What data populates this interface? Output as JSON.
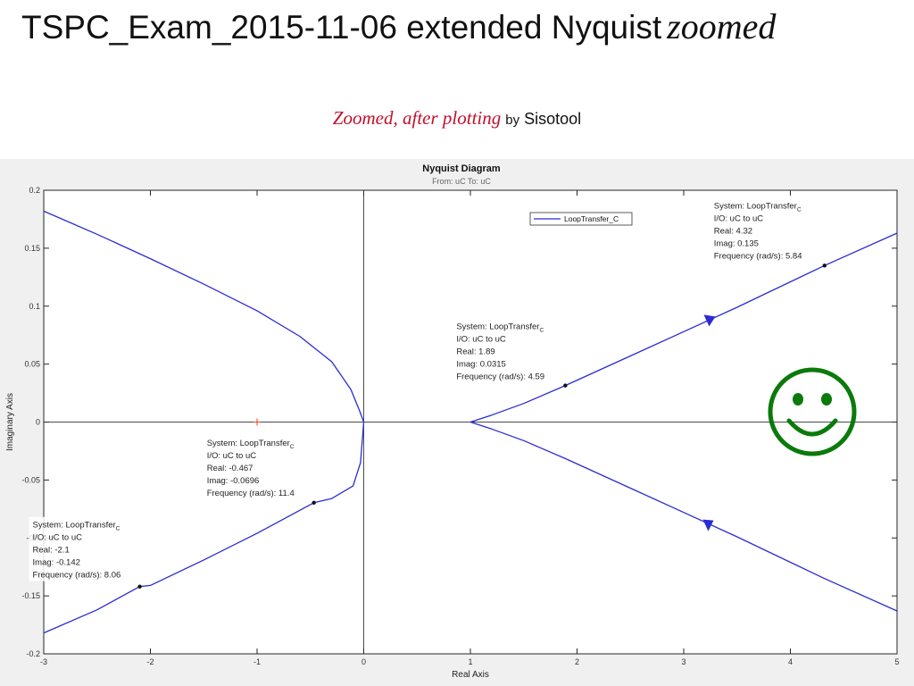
{
  "slide": {
    "title_main": "TSPC_Exam_2015-11-06 extended Nyquist",
    "title_italic": "zoomed",
    "subtitle_italic": "Zoomed, after plotting",
    "subtitle_by": "by",
    "subtitle_tool": "Sisotool"
  },
  "chart_data": {
    "type": "line",
    "title": "Nyquist Diagram",
    "subtitle": "From: uC  To: uC",
    "xlabel": "Real Axis",
    "ylabel": "Imaginary Axis",
    "xlim": [
      -3,
      5
    ],
    "ylim": [
      -0.2,
      0.2
    ],
    "xticks": [
      -3,
      -2,
      -1,
      0,
      1,
      2,
      3,
      4,
      5
    ],
    "yticks": [
      -0.2,
      -0.15,
      -0.1,
      -0.05,
      0,
      0.05,
      0.1,
      0.15,
      0.2
    ],
    "xtick_labels": [
      "-3",
      "-2",
      "-1",
      "0",
      "1",
      "2",
      "3",
      "4",
      "5"
    ],
    "ytick_labels": [
      "-0.2",
      "-0.15",
      "-0.1",
      "-0.05",
      "0",
      "0.05",
      "0.1",
      "0.15",
      "0.2"
    ],
    "legend": {
      "label": "LoopTransfer_C",
      "placement": "top-right"
    },
    "colors": {
      "curve": "#2b2bd6",
      "critical_point": "#e8402a",
      "smiley": "#0a7a0a"
    },
    "critical_point": {
      "x": -1,
      "y": 0
    },
    "series": [
      {
        "name": "LoopTransfer_C",
        "branches": [
          [
            [
              -3,
              0.182
            ],
            [
              -2.5,
              0.162
            ],
            [
              -2,
              0.141
            ],
            [
              -1.5,
              0.119
            ],
            [
              -1,
              0.096
            ],
            [
              -0.6,
              0.074
            ],
            [
              -0.3,
              0.052
            ],
            [
              -0.12,
              0.028
            ],
            [
              -0.04,
              0.01
            ],
            [
              0,
              0
            ]
          ],
          [
            [
              0,
              0
            ],
            [
              -0.03,
              -0.035
            ],
            [
              -0.1,
              -0.055
            ],
            [
              -0.3,
              -0.066
            ],
            [
              -0.467,
              -0.0696
            ],
            [
              -1,
              -0.096
            ],
            [
              -1.5,
              -0.119
            ],
            [
              -2,
              -0.141
            ],
            [
              -2.1,
              -0.142
            ],
            [
              -2.5,
              -0.162
            ],
            [
              -3,
              -0.182
            ]
          ],
          [
            [
              1.0,
              0
            ],
            [
              1.2,
              0.006
            ],
            [
              1.5,
              0.016
            ],
            [
              1.89,
              0.0315
            ],
            [
              2.5,
              0.057
            ],
            [
              3,
              0.078
            ],
            [
              3.5,
              0.099
            ],
            [
              4.32,
              0.135
            ],
            [
              5,
              0.163
            ]
          ],
          [
            [
              1.0,
              0
            ],
            [
              1.2,
              -0.006
            ],
            [
              1.5,
              -0.016
            ],
            [
              1.89,
              -0.0315
            ],
            [
              2.5,
              -0.057
            ],
            [
              3,
              -0.078
            ],
            [
              3.5,
              -0.099
            ],
            [
              4.32,
              -0.135
            ],
            [
              5,
              -0.163
            ]
          ]
        ]
      }
    ],
    "arrows": [
      {
        "x": 3.23,
        "y": 0.088,
        "dir": "up-right"
      },
      {
        "x": 3.23,
        "y": -0.088,
        "dir": "down-left"
      }
    ],
    "datatips": [
      {
        "x": 4.32,
        "y": 0.135,
        "anchor": "top-right",
        "system": "System:  LoopTransfer",
        "sub": "C",
        "io": "I/O:  uC  to  uC",
        "real": "Real:  4.32",
        "imag": "Imag:  0.135",
        "freq": "Frequency  (rad/s):  5.84"
      },
      {
        "x": 1.89,
        "y": 0.0315,
        "anchor": "mid",
        "system": "System:  LoopTransfer",
        "sub": "C",
        "io": "I/O:  uC  to  uC",
        "real": "Real:  1.89",
        "imag": "Imag:  0.0315",
        "freq": "Frequency  (rad/s):  4.59"
      },
      {
        "x": -0.467,
        "y": -0.0696,
        "anchor": "left",
        "system": "System:  LoopTransfer",
        "sub": "C",
        "io": "I/O:  uC  to  uC",
        "real": "Real:  -0.467",
        "imag": "Imag:  -0.0696",
        "freq": "Frequency  (rad/s):  11.4"
      },
      {
        "x": -2.1,
        "y": -0.142,
        "anchor": "bottom-left",
        "system": "System:  LoopTransfer",
        "sub": "C",
        "io": "I/O:  uC  to  uC",
        "real": "Real:  -2.1",
        "imag": "Imag:  -0.142",
        "freq": "Frequency  (rad/s):  8.06"
      }
    ]
  },
  "decorations": {
    "smiley_icon": "smiley-face-icon"
  }
}
